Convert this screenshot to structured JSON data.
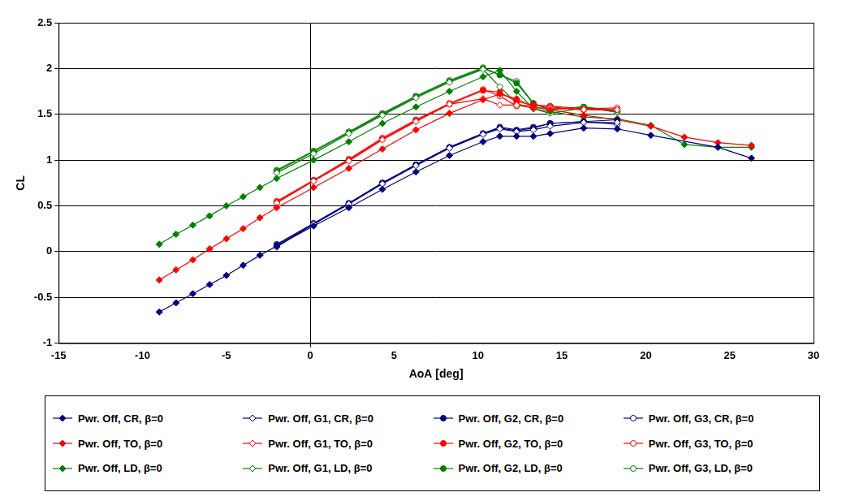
{
  "chart_data": {
    "type": "line",
    "x_label": "AoA [deg]",
    "y_label": "CL",
    "xlim": [
      -15,
      30
    ],
    "xticks": [
      -15,
      -10,
      -5,
      0,
      5,
      10,
      15,
      20,
      25,
      30
    ],
    "ylim": [
      -1,
      2.5
    ],
    "yticks": [
      -1,
      -0.5,
      0,
      0.5,
      1,
      1.5,
      2,
      2.5
    ],
    "grid": true,
    "legend": "bottom",
    "series": [
      {
        "name": "Pwr. Off, CR, β=0",
        "color": "#000080",
        "marker": "diamond",
        "line_style": "solid",
        "x": [
          -9,
          -8,
          -7,
          -6,
          -5,
          -4,
          -3,
          -2,
          0.2,
          2.3,
          4.3,
          6.3,
          8.3,
          10.3,
          11.3,
          12.3,
          13.3,
          14.3,
          16.3,
          18.3,
          20.3,
          24.3,
          26.3
        ],
        "values": [
          -0.66,
          -0.56,
          -0.46,
          -0.36,
          -0.26,
          -0.15,
          -0.04,
          0.06,
          0.28,
          0.48,
          0.68,
          0.87,
          1.05,
          1.2,
          1.26,
          1.26,
          1.26,
          1.29,
          1.35,
          1.34,
          1.27,
          1.14,
          1.02
        ]
      },
      {
        "name": "Pwr. Off, G1, CR, β=0",
        "color": "#000080",
        "marker": "diamond-open",
        "line_style": "solid",
        "x": [
          -2,
          0.2,
          2.3,
          4.3,
          6.3,
          8.3,
          10.3,
          11.3,
          12.3,
          13.3,
          14.3,
          16.3,
          18.3
        ],
        "values": [
          0.05,
          0.3,
          0.52,
          0.74,
          0.94,
          1.13,
          1.28,
          1.34,
          1.31,
          1.33,
          1.37,
          1.41,
          1.41
        ]
      },
      {
        "name": "Pwr. Off, G2, CR, β=0",
        "color": "#000080",
        "marker": "circle",
        "line_style": "solid",
        "x": [
          -2,
          0.2,
          2.3,
          4.3,
          6.3,
          8.3,
          10.3,
          11.3,
          12.3,
          13.3,
          14.3,
          16.3,
          18.3
        ],
        "values": [
          0.07,
          0.3,
          0.52,
          0.75,
          0.95,
          1.14,
          1.29,
          1.35,
          1.32,
          1.35,
          1.4,
          1.42,
          1.44
        ]
      },
      {
        "name": "Pwr. Off, G3, CR, β=0",
        "color": "#000080",
        "marker": "circle-open",
        "line_style": "solid",
        "x": [
          -2,
          0.2,
          2.3,
          4.3,
          6.3,
          8.3,
          10.3,
          11.3,
          12.3,
          13.3,
          14.3,
          16.3,
          18.3
        ],
        "values": [
          0.08,
          0.31,
          0.53,
          0.75,
          0.95,
          1.14,
          1.29,
          1.36,
          1.33,
          1.36,
          1.4,
          1.42,
          1.39
        ]
      },
      {
        "name": "Pwr. Off, TO, β=0",
        "color": "#ff0000",
        "marker": "diamond",
        "line_style": "solid",
        "x": [
          -9,
          -8,
          -7,
          -6,
          -5,
          -4,
          -3,
          -2,
          0.2,
          2.3,
          4.3,
          6.3,
          8.3,
          10.3,
          11.3,
          12.3,
          13.3,
          14.3,
          16.3,
          18.3,
          20.3,
          22.3,
          24.3,
          26.3
        ],
        "values": [
          -0.31,
          -0.2,
          -0.09,
          0.03,
          0.14,
          0.25,
          0.37,
          0.48,
          0.7,
          0.91,
          1.12,
          1.33,
          1.51,
          1.66,
          1.72,
          1.67,
          1.58,
          1.55,
          1.49,
          1.44,
          1.37,
          1.25,
          1.19,
          1.16
        ]
      },
      {
        "name": "Pwr. Off, G1, TO, β=0",
        "color": "#ff0000",
        "marker": "diamond-open",
        "line_style": "solid",
        "x": [
          -2,
          0.2,
          2.3,
          4.3,
          6.3,
          8.3,
          10.3,
          11.3,
          12.3,
          13.3,
          14.3,
          16.3,
          18.3
        ],
        "values": [
          0.53,
          0.77,
          0.99,
          1.22,
          1.42,
          1.61,
          1.67,
          1.6,
          1.6,
          1.57,
          1.57,
          1.55,
          1.55
        ]
      },
      {
        "name": "Pwr. Off, G2, TO, β=0",
        "color": "#ff0000",
        "marker": "circle",
        "line_style": "solid",
        "x": [
          -2,
          0.2,
          2.3,
          4.3,
          6.3,
          8.3,
          10.3,
          11.3,
          12.3,
          13.3,
          14.3,
          16.3,
          18.3
        ],
        "values": [
          0.54,
          0.78,
          1.0,
          1.23,
          1.43,
          1.61,
          1.76,
          1.74,
          1.64,
          1.6,
          1.58,
          1.55,
          1.55
        ]
      },
      {
        "name": "Pwr. Off, G3, TO, β=0",
        "color": "#ff0000",
        "marker": "circle-open",
        "line_style": "solid",
        "x": [
          -2,
          0.2,
          2.3,
          4.3,
          6.3,
          8.3,
          10.3,
          11.3,
          12.3,
          13.3,
          14.3,
          16.3,
          18.3
        ],
        "values": [
          0.55,
          0.78,
          1.01,
          1.24,
          1.44,
          1.62,
          1.77,
          1.7,
          1.59,
          1.6,
          1.59,
          1.56,
          1.57
        ]
      },
      {
        "name": "Pwr. Off, LD, β=0",
        "color": "#008000",
        "marker": "diamond",
        "line_style": "solid",
        "x": [
          -9,
          -8,
          -7,
          -6,
          -5,
          -4,
          -3,
          -2,
          0.2,
          2.3,
          4.3,
          6.3,
          8.3,
          10.3,
          11.3,
          12.3,
          13.3,
          14.3,
          16.3,
          18.3,
          20.3,
          22.3,
          24.3,
          26.3
        ],
        "values": [
          0.08,
          0.19,
          0.29,
          0.39,
          0.5,
          0.6,
          0.7,
          0.8,
          1.0,
          1.2,
          1.4,
          1.58,
          1.75,
          1.91,
          1.98,
          1.75,
          1.56,
          1.53,
          1.47,
          1.45,
          1.38,
          1.17,
          1.14,
          1.14
        ]
      },
      {
        "name": "Pwr. Off, G1, LD, β=0",
        "color": "#008000",
        "marker": "diamond-open",
        "line_style": "solid",
        "x": [
          -2,
          0.2,
          2.3,
          4.3,
          6.3,
          8.3,
          10.3,
          11.3,
          12.3,
          13.3,
          14.3,
          16.3,
          18.3
        ],
        "values": [
          0.86,
          1.07,
          1.29,
          1.49,
          1.68,
          1.85,
          1.99,
          1.8,
          1.62,
          1.56,
          1.51,
          1.57,
          1.53
        ]
      },
      {
        "name": "Pwr. Off, G2, LD, β=0",
        "color": "#008000",
        "marker": "circle",
        "line_style": "solid",
        "x": [
          -2,
          0.2,
          2.3,
          4.3,
          6.3,
          8.3,
          10.3,
          11.3,
          12.3,
          13.3,
          14.3,
          16.3,
          18.3
        ],
        "values": [
          0.88,
          1.09,
          1.3,
          1.5,
          1.69,
          1.86,
          2.0,
          1.93,
          1.84,
          1.62,
          1.55,
          1.58,
          1.54
        ]
      },
      {
        "name": "Pwr. Off, G3, LD, β=0",
        "color": "#008000",
        "marker": "circle-open",
        "line_style": "solid",
        "x": [
          -2,
          0.2,
          2.3,
          4.3,
          6.3,
          8.3,
          10.3,
          11.3,
          12.3,
          13.3,
          14.3,
          16.3,
          18.3
        ],
        "values": [
          0.89,
          1.1,
          1.31,
          1.51,
          1.7,
          1.87,
          2.01,
          1.93,
          1.86,
          1.62,
          1.55,
          1.58,
          1.52
        ]
      }
    ]
  }
}
